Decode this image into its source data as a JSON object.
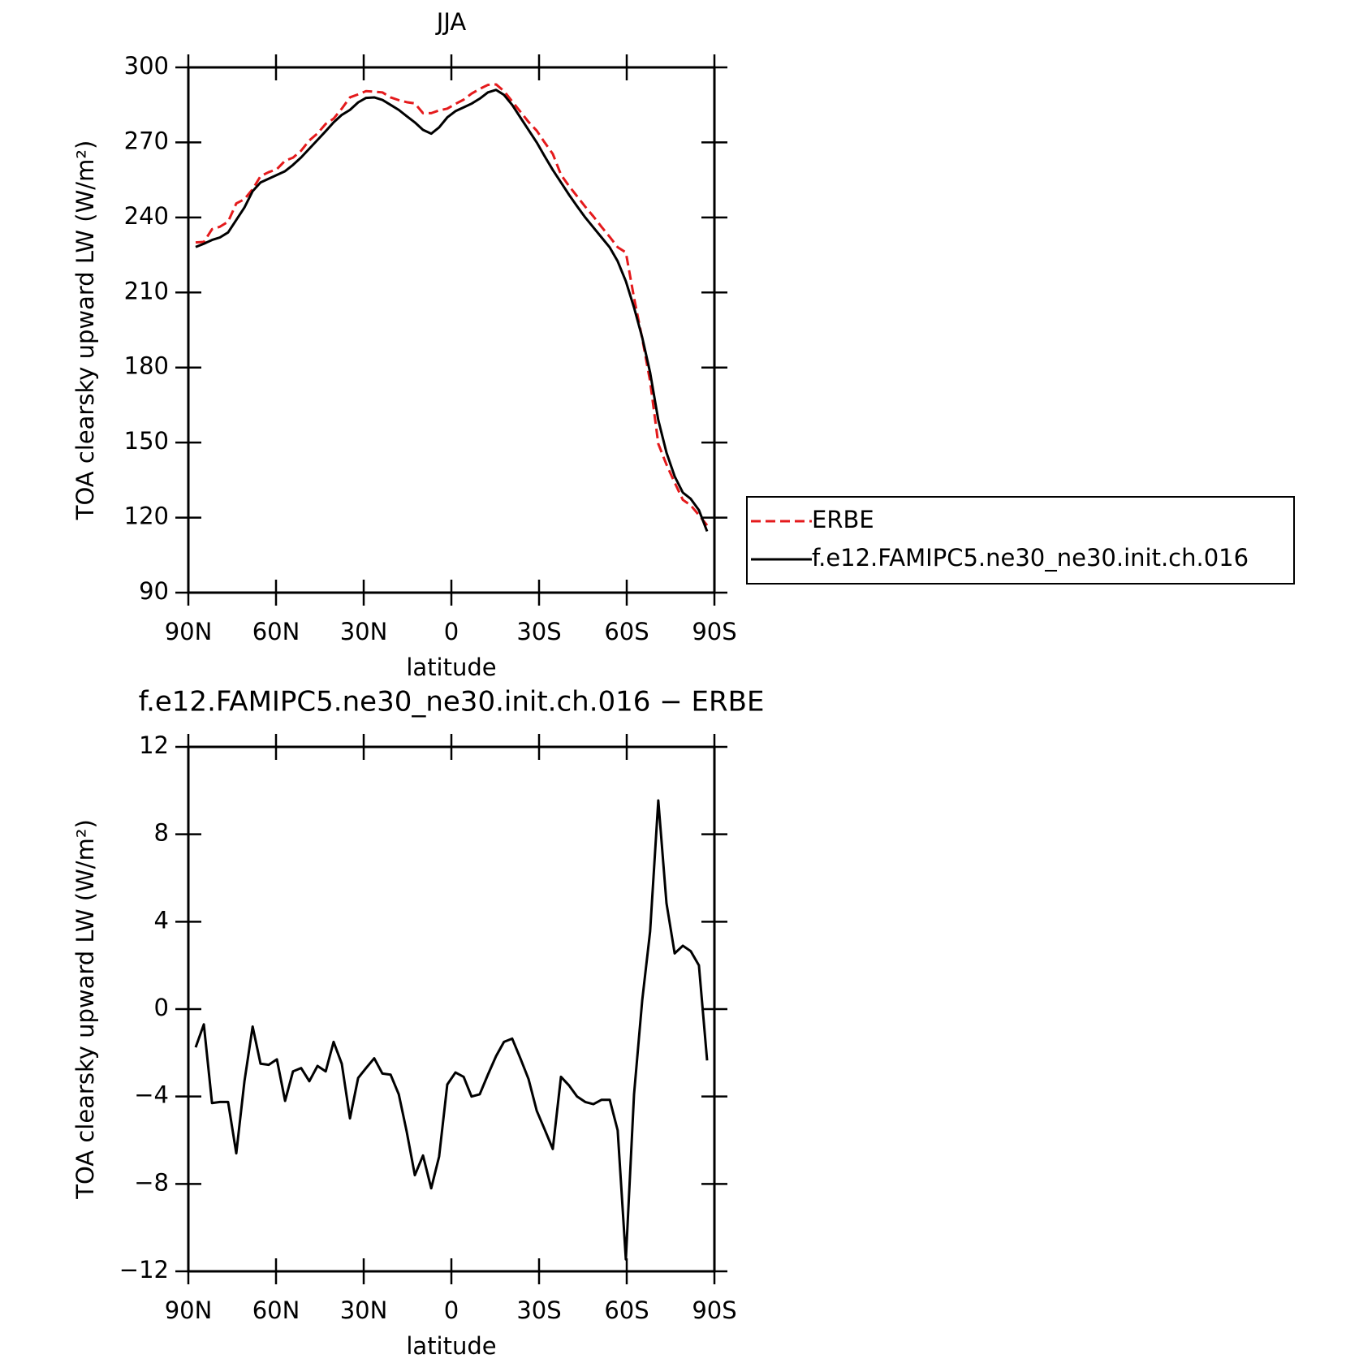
{
  "chart_data": [
    {
      "type": "line",
      "title": "JJA",
      "x_label": "latitude",
      "y_label": "TOA clearsky upward LW (W/m²)",
      "xlim": [
        90,
        -90
      ],
      "ylim": [
        90,
        300
      ],
      "xticks": [
        {
          "value": 90,
          "label": "90N"
        },
        {
          "value": 60,
          "label": "60N"
        },
        {
          "value": 30,
          "label": "30N"
        },
        0,
        {
          "value": -30,
          "label": "30S"
        },
        {
          "value": -60,
          "label": "60S"
        },
        {
          "value": -90,
          "label": "90S"
        }
      ],
      "yticks": [
        90,
        120,
        150,
        180,
        210,
        240,
        270,
        300
      ],
      "legend": "right",
      "x": [
        87.5,
        84.7,
        81.9,
        79.2,
        76.4,
        73.6,
        70.8,
        68.0,
        65.3,
        62.5,
        59.7,
        56.9,
        54.2,
        51.4,
        48.6,
        45.8,
        43.0,
        40.3,
        37.5,
        34.7,
        31.9,
        29.2,
        26.4,
        23.6,
        20.8,
        18.0,
        15.3,
        12.5,
        9.7,
        6.9,
        4.2,
        1.4,
        -1.4,
        -4.2,
        -6.9,
        -9.7,
        -12.5,
        -15.3,
        -18.0,
        -20.8,
        -23.6,
        -26.4,
        -29.2,
        -31.9,
        -34.7,
        -37.5,
        -40.3,
        -43.0,
        -45.8,
        -48.6,
        -51.4,
        -54.2,
        -56.9,
        -59.7,
        -62.5,
        -65.3,
        -68.0,
        -70.8,
        -73.6,
        -76.4,
        -79.2,
        -81.9,
        -84.7,
        -87.5
      ],
      "series": [
        {
          "name": "ERBE",
          "color": "#e41a1c",
          "line_style": "dashed",
          "values": [
            230.0,
            230.2,
            235.3,
            236.3,
            238.3,
            245.6,
            247.3,
            251.3,
            256.5,
            258.1,
            259.3,
            262.7,
            263.9,
            266.7,
            270.8,
            273.6,
            277.4,
            279.5,
            283.5,
            288.0,
            289.2,
            290.5,
            290.3,
            290.0,
            288.0,
            286.9,
            286.1,
            285.6,
            281.7,
            281.7,
            282.8,
            283.5,
            285.4,
            287.1,
            289.5,
            291.4,
            293.0,
            293.2,
            290.5,
            286.4,
            282.3,
            278.2,
            274.7,
            270.0,
            265.4,
            257.1,
            252.5,
            248.5,
            244.3,
            240.4,
            236.2,
            232.2,
            228.1,
            226.0,
            207.9,
            191.6,
            174.5,
            149.5,
            141.2,
            134.0,
            127.1,
            124.9,
            121.0,
            116.9
          ]
        },
        {
          "name": "f.e12.FAMIPC5.ne30_ne30.init.ch.016",
          "color": "#000000",
          "line_style": "solid",
          "values": [
            228.2,
            229.5,
            231.0,
            232.0,
            234.0,
            239.0,
            244.0,
            250.5,
            254.0,
            255.5,
            257.0,
            258.5,
            261.0,
            264.0,
            267.5,
            271.0,
            274.5,
            278.0,
            281.0,
            283.0,
            286.0,
            287.8,
            288.0,
            287.0,
            285.0,
            283.0,
            280.5,
            278.0,
            275.0,
            273.5,
            276.0,
            280.0,
            282.5,
            284.0,
            285.5,
            287.5,
            290.0,
            291.0,
            289.0,
            285.0,
            280.0,
            275.0,
            270.0,
            264.5,
            259.0,
            254.0,
            249.0,
            244.5,
            240.0,
            236.0,
            232.0,
            228.0,
            222.5,
            214.5,
            204.0,
            192.0,
            178.0,
            159.0,
            146.0,
            136.5,
            130.0,
            127.5,
            123.0,
            114.5
          ]
        }
      ]
    },
    {
      "type": "line",
      "title": "f.e12.FAMIPC5.ne30_ne30.init.ch.016 − ERBE",
      "x_label": "latitude",
      "y_label": "TOA clearsky upward LW (W/m²)",
      "xlim": [
        90,
        -90
      ],
      "ylim": [
        -12,
        12
      ],
      "xticks": [
        {
          "value": 90,
          "label": "90N"
        },
        {
          "value": 60,
          "label": "60N"
        },
        {
          "value": 30,
          "label": "30N"
        },
        0,
        {
          "value": -30,
          "label": "30S"
        },
        {
          "value": -60,
          "label": "60S"
        },
        {
          "value": -90,
          "label": "90S"
        }
      ],
      "yticks": [
        {
          "value": -12,
          "label": "−12"
        },
        {
          "value": -8,
          "label": "−8"
        },
        {
          "value": -4,
          "label": "−4"
        },
        0,
        4,
        8,
        12
      ],
      "x": [
        87.5,
        84.7,
        81.9,
        79.2,
        76.4,
        73.6,
        70.8,
        68.0,
        65.3,
        62.5,
        59.7,
        56.9,
        54.2,
        51.4,
        48.6,
        45.8,
        43.0,
        40.3,
        37.5,
        34.7,
        31.9,
        29.2,
        26.4,
        23.6,
        20.8,
        18.0,
        15.3,
        12.5,
        9.7,
        6.9,
        4.2,
        1.4,
        -1.4,
        -4.2,
        -6.9,
        -9.7,
        -12.5,
        -15.3,
        -18.0,
        -20.8,
        -23.6,
        -26.4,
        -29.2,
        -31.9,
        -34.7,
        -37.5,
        -40.3,
        -43.0,
        -45.8,
        -48.6,
        -51.4,
        -54.2,
        -56.9,
        -59.7,
        -62.5,
        -65.3,
        -68.0,
        -70.8,
        -73.6,
        -76.4,
        -79.2,
        -81.9,
        -84.7,
        -87.5
      ],
      "series": [
        {
          "color": "#000000",
          "line_style": "solid",
          "values": [
            -1.75,
            -0.7,
            -4.3,
            -4.25,
            -4.25,
            -6.6,
            -3.3,
            -0.8,
            -2.5,
            -2.55,
            -2.3,
            -4.2,
            -2.85,
            -2.7,
            -3.3,
            -2.6,
            -2.85,
            -1.5,
            -2.5,
            -5.0,
            -3.15,
            -2.7,
            -2.25,
            -2.95,
            -3.0,
            -3.9,
            -5.6,
            -7.6,
            -6.7,
            -8.2,
            -6.75,
            -3.45,
            -2.9,
            -3.1,
            -4.0,
            -3.9,
            -3.0,
            -2.15,
            -1.5,
            -1.35,
            -2.25,
            -3.2,
            -4.65,
            -5.5,
            -6.4,
            -3.1,
            -3.5,
            -4.0,
            -4.25,
            -4.35,
            -4.15,
            -4.15,
            -5.55,
            -11.45,
            -3.9,
            0.4,
            3.55,
            9.55,
            4.85,
            2.55,
            2.9,
            2.65,
            2.0,
            -2.35
          ]
        }
      ]
    }
  ]
}
